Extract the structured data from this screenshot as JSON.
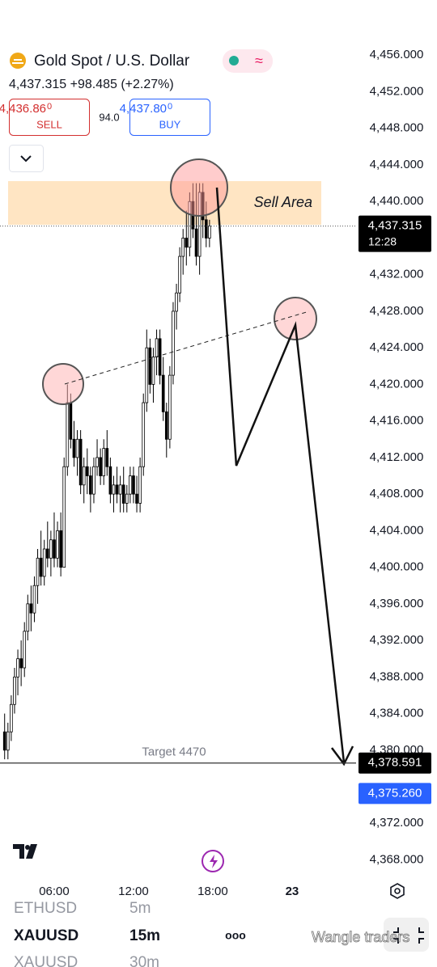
{
  "header": {
    "title": "Gold Spot / U.S. Dollar",
    "quote": "4,437.315 +98.485 (+2.27%)",
    "sell_price": "4,436.86",
    "sell_price_last": "0",
    "sell_label": "SELL",
    "spread": "94.0",
    "buy_price": "4,437.80",
    "buy_price_last": "0",
    "buy_label": "BUY"
  },
  "chart_data": {
    "type": "candlestick",
    "x": [
      2.25,
      2.5,
      2.75,
      3,
      3.25,
      3.5,
      3.75,
      4,
      4.25,
      4.5,
      4.75,
      5,
      5.25,
      5.5,
      5.75,
      6,
      6.25,
      6.5,
      6.75,
      7,
      7.25,
      7.5,
      7.75,
      8,
      8.25,
      8.5,
      8.75,
      9,
      9.25,
      9.5,
      9.75,
      10,
      10.25,
      10.5,
      10.75,
      11,
      11.25,
      11.5,
      11.75,
      12,
      12.25,
      12.5,
      12.75,
      13,
      13.25,
      13.5,
      13.75,
      14,
      14.25,
      14.5,
      14.75,
      15,
      15.25,
      15.5,
      15.75,
      16,
      16.25,
      16.5,
      16.75,
      17,
      17.25,
      17.5,
      17.75
    ],
    "open": [
      4382,
      4380,
      4382,
      4385,
      4388,
      4390,
      4389,
      4393,
      4396,
      4395,
      4398,
      4401,
      4399,
      4402,
      4401,
      4403,
      4401,
      4404,
      4400,
      4411,
      4418,
      4414,
      4412,
      4414,
      4409,
      4411,
      4410,
      4408,
      4411,
      4412,
      4410,
      4413,
      4411,
      4408,
      4409,
      4408,
      4409,
      4407,
      4408,
      4410,
      4408,
      4407,
      4411,
      4418,
      4424,
      4420,
      4423,
      4425,
      4421,
      4417,
      4414,
      4421,
      4428,
      4430,
      4434,
      4436,
      4435,
      4440,
      4437,
      4434,
      4441,
      4438,
      4436
    ],
    "high": [
      4384,
      4383,
      4386,
      4389,
      4391,
      4392,
      4394,
      4397,
      4398,
      4399,
      4402,
      4404,
      4403,
      4405,
      4404,
      4406,
      4405,
      4406,
      4412,
      4420,
      4419,
      4416,
      4415,
      4415,
      4412,
      4413,
      4411,
      4412,
      4414,
      4413,
      4414,
      4415,
      4412,
      4410,
      4411,
      4410,
      4411,
      4409,
      4411,
      4411,
      4410,
      4412,
      4419,
      4426,
      4425,
      4424,
      4426,
      4426,
      4423,
      4418,
      4422,
      4429,
      4431,
      4435,
      4437,
      4439,
      4441,
      4442,
      4442,
      4442,
      4442,
      4440,
      4438
    ],
    "low": [
      4379,
      4379,
      4381,
      4384,
      4386,
      4387,
      4388,
      4392,
      4393,
      4394,
      4396,
      4398,
      4398,
      4400,
      4399,
      4400,
      4400,
      4399,
      4400,
      4410,
      4413,
      4411,
      4410,
      4408,
      4407,
      4408,
      4406,
      4407,
      4410,
      4409,
      4409,
      4410,
      4407,
      4406,
      4407,
      4406,
      4406,
      4406,
      4407,
      4407,
      4406,
      4406,
      4410,
      4417,
      4419,
      4418,
      4421,
      4420,
      4416,
      4412,
      4413,
      4420,
      4426,
      4429,
      4432,
      4433,
      4434,
      4436,
      4433,
      4432,
      4436,
      4435,
      4435
    ],
    "close": [
      4380,
      4382,
      4385,
      4388,
      4390,
      4389,
      4393,
      4396,
      4395,
      4398,
      4401,
      4399,
      4402,
      4401,
      4403,
      4401,
      4404,
      4400,
      4411,
      4418,
      4414,
      4412,
      4414,
      4409,
      4411,
      4410,
      4408,
      4411,
      4412,
      4410,
      4413,
      4411,
      4408,
      4409,
      4408,
      4409,
      4407,
      4408,
      4410,
      4408,
      4407,
      4411,
      4418,
      4424,
      4420,
      4423,
      4425,
      4421,
      4417,
      4414,
      4421,
      4428,
      4430,
      4434,
      4436,
      4435,
      4440,
      4437,
      4434,
      4441,
      4438,
      4436,
      4437.315
    ],
    "up_color": "#ffffff",
    "down_color": "#000000",
    "xlim": [
      1.9,
      28.84
    ],
    "xticks": [
      {
        "value": 6,
        "label": "06:00"
      },
      {
        "value": 12,
        "label": "12:00"
      },
      {
        "value": 18,
        "label": "18:00"
      },
      {
        "value": 24,
        "label": "23"
      }
    ],
    "ylim": [
      4366.1,
      4458.5
    ],
    "yticks": [
      {
        "value": 4456,
        "label": "4,456.000"
      },
      {
        "value": 4452,
        "label": "4,452.000"
      },
      {
        "value": 4448,
        "label": "4,448.000"
      },
      {
        "value": 4444,
        "label": "4,444.000"
      },
      {
        "value": 4440,
        "label": "4,440.000"
      },
      {
        "value": 4432,
        "label": "4,432.000"
      },
      {
        "value": 4428,
        "label": "4,428.000"
      },
      {
        "value": 4424,
        "label": "4,424.000"
      },
      {
        "value": 4420,
        "label": "4,420.000"
      },
      {
        "value": 4416,
        "label": "4,416.000"
      },
      {
        "value": 4412,
        "label": "4,412.000"
      },
      {
        "value": 4408,
        "label": "4,408.000"
      },
      {
        "value": 4404,
        "label": "4,404.000"
      },
      {
        "value": 4400,
        "label": "4,400.000"
      },
      {
        "value": 4396,
        "label": "4,396.000"
      },
      {
        "value": 4392,
        "label": "4,392.000"
      },
      {
        "value": 4388,
        "label": "4,388.000"
      },
      {
        "value": 4384,
        "label": "4,384.000"
      },
      {
        "value": 4380,
        "label": "4,380.000"
      },
      {
        "value": 4372,
        "label": "4,372.000"
      },
      {
        "value": 4368,
        "label": "4,368.000"
      }
    ],
    "price_labels": [
      {
        "value": 4437.315,
        "label": "4,437.315",
        "time": "12:28",
        "color": "#000000"
      },
      {
        "value": 4378.591,
        "label": "4,378.591",
        "color": "#000000"
      },
      {
        "value": 4375.26,
        "label": "4,375.260",
        "color": "#2962ff"
      }
    ],
    "annotations": {
      "zone": "Sell Area",
      "target": "Target 4470"
    }
  },
  "footer": {
    "rows": [
      {
        "symbol": "ETHUSD",
        "interval": "5m"
      },
      {
        "symbol": "XAUUSD",
        "interval": "15m",
        "menu": "ooo"
      },
      {
        "symbol": "XAUUSD",
        "interval": "30m"
      }
    ],
    "watermark": "Wangle traders"
  }
}
